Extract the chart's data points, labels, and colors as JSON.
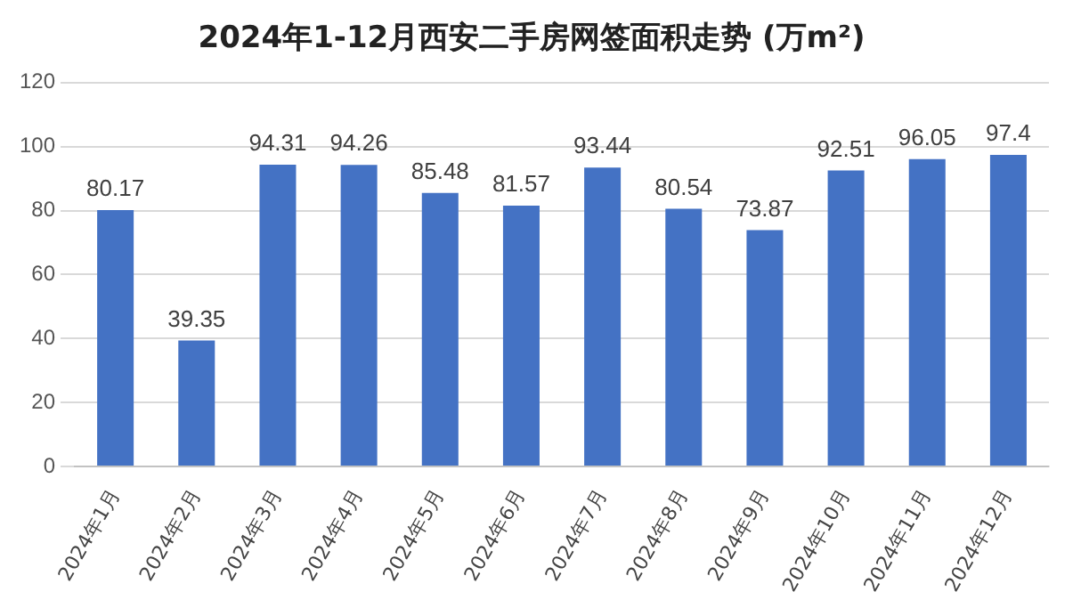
{
  "chart_data": {
    "type": "bar",
    "title": "2024年1-12月西安二手房网签面积走势 (万m²)",
    "categories": [
      "2024年1月",
      "2024年2月",
      "2024年3月",
      "2024年4月",
      "2024年5月",
      "2024年6月",
      "2024年7月",
      "2024年8月",
      "2024年9月",
      "2024年10月",
      "2024年11月",
      "2024年12月"
    ],
    "values": [
      80.17,
      39.35,
      94.31,
      94.26,
      85.48,
      81.57,
      93.44,
      80.54,
      73.87,
      92.51,
      96.05,
      97.4
    ],
    "color": "#4472c4",
    "ylim": [
      0,
      120
    ],
    "yticks": [
      0,
      20,
      40,
      60,
      80,
      100,
      120
    ],
    "grid": "y",
    "data_labels": true
  }
}
